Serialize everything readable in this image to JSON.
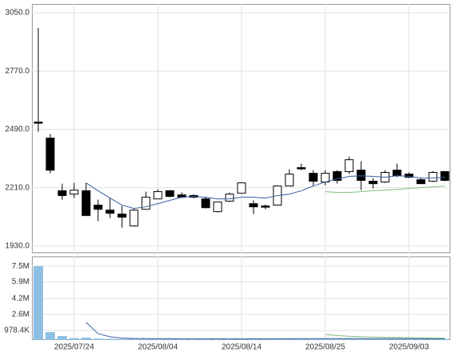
{
  "chart_data": [
    {
      "type": "candlestick",
      "ylim": [
        1895,
        3092
      ],
      "yticks": [
        {
          "value": 1930,
          "label": "1930.0"
        },
        {
          "value": 2210,
          "label": "2210.0"
        },
        {
          "value": 2490,
          "label": "2490.0"
        },
        {
          "value": 2770,
          "label": "2770.0"
        },
        {
          "value": 3050,
          "label": "3050.0"
        }
      ],
      "grid": true,
      "up_color": "#ffffff",
      "down_color": "#000000",
      "open": [
        2525,
        2448,
        2195,
        2179,
        2195,
        2126,
        2102,
        2083,
        2026,
        2106,
        2156,
        2195,
        2175,
        2172,
        2156,
        2095,
        2145,
        2183,
        2133,
        2122,
        2126,
        2218,
        2306,
        2279,
        2237,
        2287,
        2287,
        2294,
        2241,
        2237,
        2294,
        2275,
        2248,
        2241,
        2287
      ],
      "high": [
        2977,
        2467,
        2229,
        2233,
        2233,
        2152,
        2160,
        2122,
        2110,
        2191,
        2202,
        2198,
        2187,
        2179,
        2164,
        2141,
        2187,
        2233,
        2149,
        2129,
        2218,
        2298,
        2325,
        2294,
        2294,
        2294,
        2359,
        2336,
        2256,
        2294,
        2325,
        2283,
        2256,
        2290,
        2290
      ],
      "low": [
        2478,
        2279,
        2152,
        2160,
        2076,
        2049,
        2064,
        2018,
        2022,
        2106,
        2156,
        2164,
        2160,
        2160,
        2110,
        2091,
        2141,
        2183,
        2083,
        2106,
        2126,
        2218,
        2294,
        2218,
        2221,
        2229,
        2275,
        2198,
        2206,
        2233,
        2260,
        2256,
        2229,
        2237,
        2241
      ],
      "close": [
        2520,
        2294,
        2172,
        2198,
        2076,
        2106,
        2087,
        2068,
        2102,
        2164,
        2191,
        2168,
        2164,
        2164,
        2114,
        2141,
        2179,
        2233,
        2118,
        2120,
        2218,
        2275,
        2303,
        2241,
        2279,
        2245,
        2344,
        2245,
        2229,
        2283,
        2267,
        2260,
        2229,
        2283,
        2245
      ],
      "series": [
        {
          "color": "#3a5f9e",
          "values": [
            null,
            null,
            null,
            null,
            2233,
            2195,
            2160,
            2126,
            2110,
            2118,
            2133,
            2149,
            2164,
            2168,
            2164,
            2156,
            2156,
            2164,
            2164,
            2160,
            2172,
            2179,
            2195,
            2218,
            2237,
            2252,
            2264,
            2267,
            2264,
            2260,
            2267,
            2264,
            2256,
            2256,
            2260
          ]
        },
        {
          "color": "#7fbf7f",
          "values": [
            null,
            null,
            null,
            null,
            null,
            null,
            null,
            null,
            null,
            null,
            null,
            null,
            null,
            null,
            null,
            null,
            null,
            null,
            null,
            null,
            null,
            null,
            null,
            null,
            2191,
            2187,
            2187,
            2191,
            2195,
            2198,
            2202,
            2206,
            2210,
            2214,
            2218
          ]
        }
      ]
    },
    {
      "type": "bar",
      "categories": [
        null,
        null,
        null,
        "2025/07/24",
        null,
        null,
        null,
        null,
        null,
        null,
        "2025/08/04",
        null,
        null,
        null,
        null,
        null,
        null,
        "2025/08/14",
        null,
        null,
        null,
        null,
        null,
        null,
        "2025/08/25",
        null,
        null,
        null,
        null,
        null,
        null,
        "2025/09/03",
        null,
        null,
        null
      ],
      "ylim": [
        0,
        8480000
      ],
      "yticks": [
        {
          "value": 978400,
          "label": "978.4K"
        },
        {
          "value": 2600000,
          "label": "2.6M"
        },
        {
          "value": 4200000,
          "label": "4.2M"
        },
        {
          "value": 5900000,
          "label": "5.9M"
        },
        {
          "value": 7500000,
          "label": "7.5M"
        }
      ],
      "grid": true,
      "color": "#8dbfe3",
      "values": [
        7500000,
        800000,
        400000,
        200000,
        250000,
        150000,
        130000,
        120000,
        150000,
        140000,
        130000,
        120000,
        110000,
        110000,
        120000,
        110000,
        120000,
        130000,
        150000,
        120000,
        140000,
        160000,
        150000,
        140000,
        150000,
        130000,
        170000,
        160000,
        120000,
        140000,
        130000,
        120000,
        110000,
        130000,
        120000
      ],
      "series": [
        {
          "color": "#3a5f9e",
          "values": [
            null,
            null,
            null,
            null,
            1800000,
            650000,
            330000,
            200000,
            160000,
            150000,
            140000,
            140000,
            130000,
            130000,
            120000,
            120000,
            120000,
            120000,
            130000,
            130000,
            130000,
            140000,
            140000,
            140000,
            150000,
            150000,
            150000,
            150000,
            140000,
            140000,
            140000,
            140000,
            130000,
            130000,
            130000
          ]
        },
        {
          "color": "#7fbf7f",
          "values": [
            null,
            null,
            null,
            null,
            null,
            null,
            null,
            null,
            null,
            null,
            null,
            null,
            null,
            null,
            null,
            null,
            null,
            null,
            null,
            null,
            null,
            null,
            null,
            null,
            570000,
            450000,
            380000,
            330000,
            300000,
            280000,
            260000,
            240000,
            220000,
            200000,
            190000
          ]
        }
      ]
    }
  ]
}
